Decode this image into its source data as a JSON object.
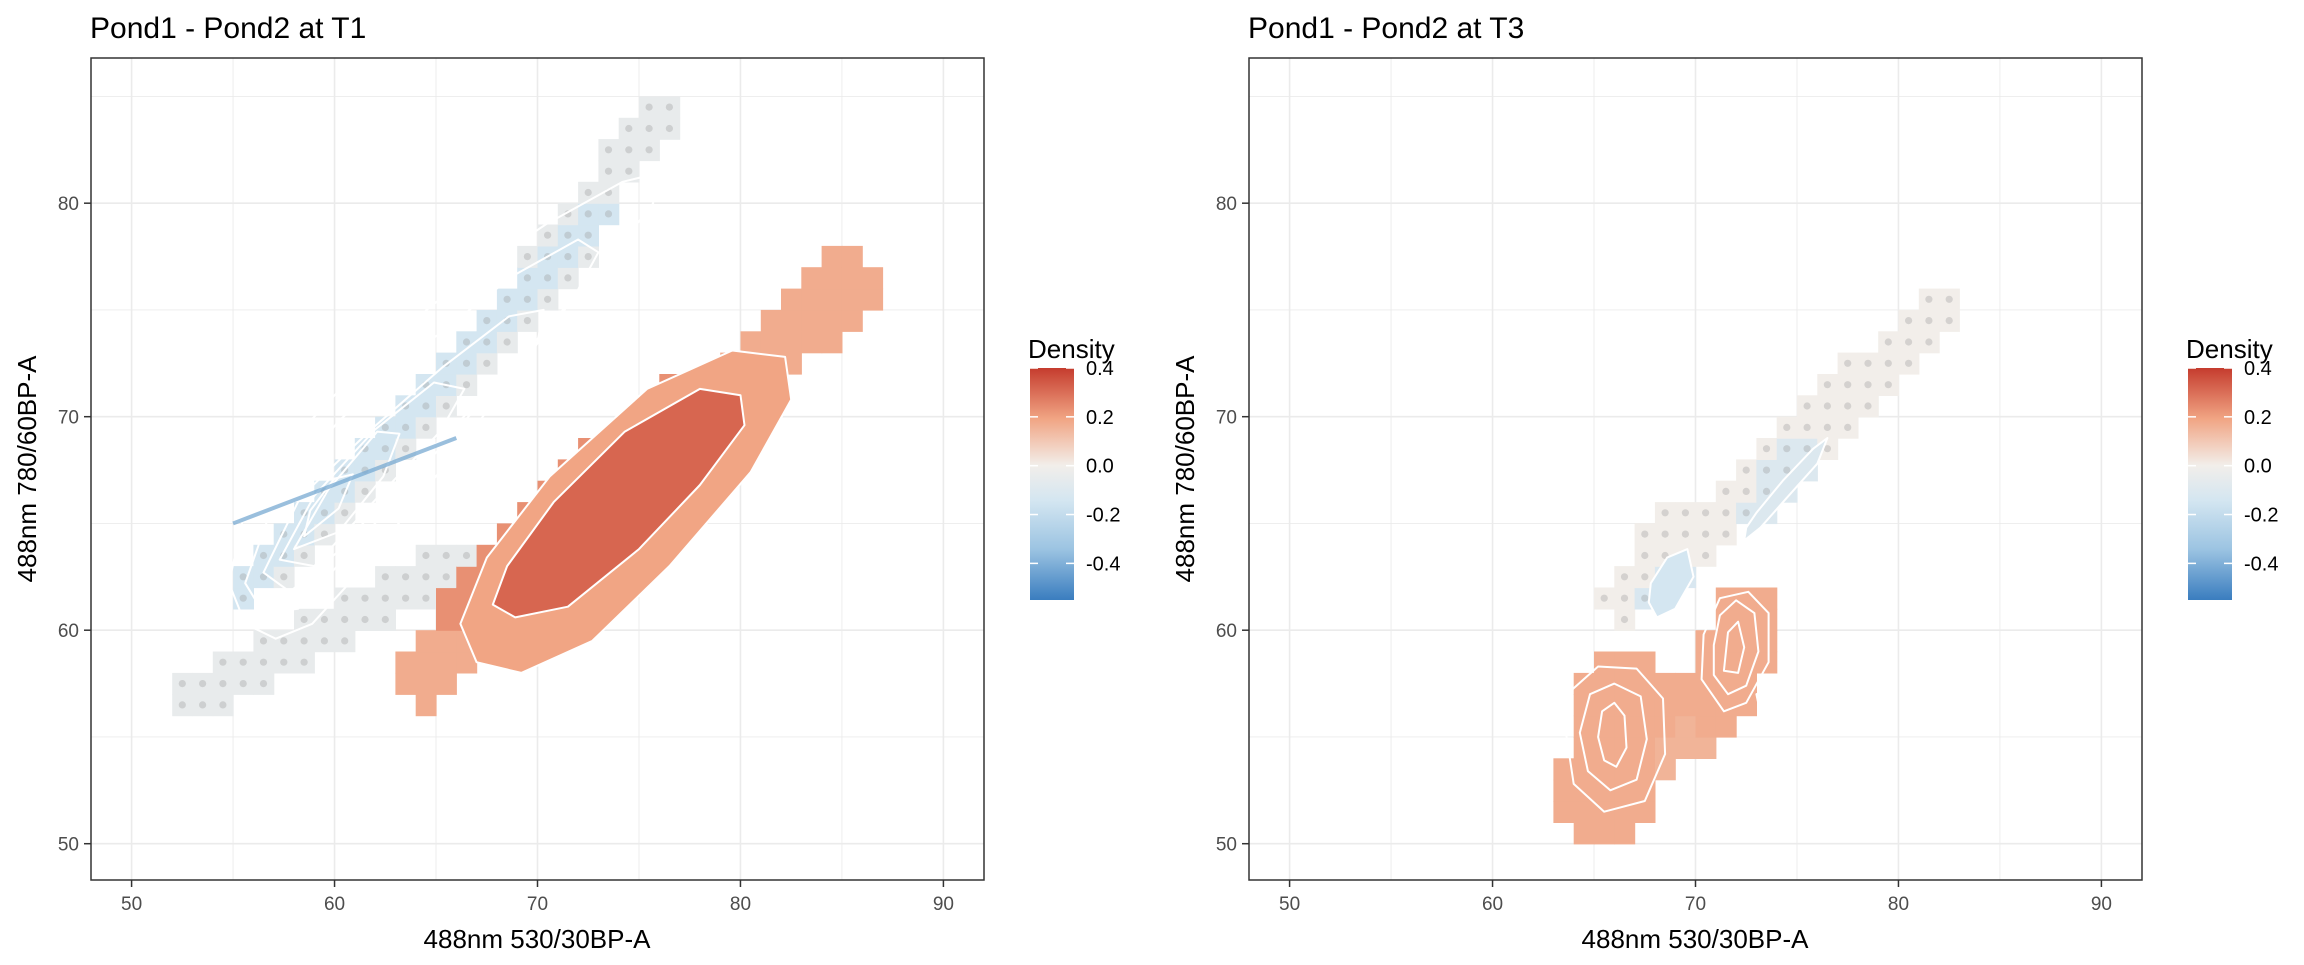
{
  "colors": {
    "low": "#3a7dbf",
    "mid": "#f2eeea",
    "high": "#c53c2e",
    "grid": "#ebebeb",
    "contour": "#ffffff"
  },
  "chart_data": [
    {
      "type": "heatmap",
      "title": "Pond1 - Pond2 at T1",
      "xlabel": "488nm 530/30BP-A",
      "ylabel": "488nm 780/60BP-A",
      "xlim": [
        48,
        92
      ],
      "ylim": [
        48.3,
        86.8
      ],
      "xticks": [
        50,
        60,
        70,
        80,
        90
      ],
      "yticks": [
        50,
        60,
        70,
        80
      ],
      "grid": true,
      "legend": {
        "title": "Density",
        "ticks": [
          0.4,
          0.2,
          0.0,
          -0.2,
          -0.4
        ],
        "range": [
          -0.55,
          0.4
        ],
        "placement": "right"
      },
      "cell_size": 1,
      "regions": [
        {
          "lo": [
            53.5,
            57
          ],
          "hi": [
            65.5,
            63
          ],
          "w": 1.3,
          "v": -0.04
        },
        {
          "lo": [
            57,
            63
          ],
          "hi": [
            72,
            78
          ],
          "w": 1.4,
          "v": -0.04
        },
        {
          "lo": [
            70,
            77
          ],
          "hi": [
            76,
            84
          ],
          "w": 1.0,
          "v": -0.04
        },
        {
          "lo": [
            55,
            61
          ],
          "hi": [
            73,
            79.5
          ],
          "w": 0.7,
          "v": -0.12
        },
        {
          "lo": [
            64.5,
            58
          ],
          "hi": [
            85,
            76
          ],
          "w": 1.6,
          "v": 0.18
        },
        {
          "lo": [
            66,
            61
          ],
          "hi": [
            77,
            71
          ],
          "w": 1.2,
          "v": 0.24
        },
        {
          "lo": [
            68,
            62
          ],
          "hi": [
            76,
            70.5
          ],
          "w": 0.7,
          "v": 0.3
        }
      ],
      "contours": [
        [
          [
            54.8,
            62.2
          ],
          [
            55.6,
            60.3
          ],
          [
            57.1,
            59.6
          ],
          [
            58.9,
            60.3
          ],
          [
            61.2,
            62.7
          ],
          [
            64.0,
            66.0
          ],
          [
            67.3,
            70.0
          ],
          [
            70.6,
            74.2
          ],
          [
            73.8,
            77.7
          ],
          [
            75.7,
            80.0
          ],
          [
            75.5,
            81.3
          ],
          [
            74.2,
            81.0
          ],
          [
            70.4,
            79.0
          ],
          [
            66.2,
            76.3
          ],
          [
            62.0,
            73.0
          ],
          [
            58.0,
            69.0
          ],
          [
            55.6,
            65.7
          ]
        ],
        [
          [
            55.6,
            62.2
          ],
          [
            56.5,
            60.8
          ],
          [
            58.2,
            61.0
          ],
          [
            61.0,
            63.9
          ],
          [
            64.6,
            67.9
          ],
          [
            68.4,
            71.9
          ],
          [
            71.8,
            75.6
          ],
          [
            73.0,
            77.7
          ],
          [
            72.0,
            78.3
          ],
          [
            68.8,
            76.6
          ],
          [
            64.5,
            73.4
          ],
          [
            60.2,
            69.8
          ],
          [
            57.0,
            66.0
          ]
        ],
        [
          [
            56.5,
            62.7
          ],
          [
            57.8,
            61.8
          ],
          [
            60.2,
            63.7
          ],
          [
            63.6,
            67.4
          ],
          [
            67.0,
            70.6
          ],
          [
            70.0,
            73.5
          ],
          [
            70.3,
            75.0
          ],
          [
            68.6,
            74.7
          ],
          [
            65.3,
            72.3
          ],
          [
            61.8,
            69.4
          ],
          [
            58.3,
            66.2
          ]
        ],
        [
          [
            57.3,
            63.3
          ],
          [
            59.0,
            63.0
          ],
          [
            62.1,
            66.2
          ],
          [
            65.2,
            69.3
          ],
          [
            66.4,
            71.3
          ],
          [
            64.9,
            71.6
          ],
          [
            62.0,
            69.4
          ],
          [
            59.0,
            66.3
          ]
        ],
        [
          [
            58.0,
            63.8
          ],
          [
            60.2,
            64.6
          ],
          [
            62.4,
            67.2
          ],
          [
            63.2,
            69.2
          ],
          [
            62.1,
            69.3
          ],
          [
            59.7,
            66.6
          ]
        ],
        [
          [
            58.5,
            64.4
          ],
          [
            60.2,
            65.7
          ],
          [
            60.9,
            67.3
          ],
          [
            60.0,
            67.1
          ],
          [
            58.8,
            65.6
          ]
        ],
        [
          [
            66.2,
            60.3
          ],
          [
            67.0,
            58.5
          ],
          [
            69.2,
            58.0
          ],
          [
            72.7,
            59.5
          ],
          [
            76.5,
            63.0
          ],
          [
            80.5,
            67.4
          ],
          [
            82.5,
            70.8
          ],
          [
            82.2,
            72.8
          ],
          [
            79.6,
            73.1
          ],
          [
            75.4,
            71.3
          ],
          [
            70.6,
            67.2
          ],
          [
            67.5,
            63.4
          ]
        ],
        [
          [
            67.8,
            61.2
          ],
          [
            68.9,
            60.6
          ],
          [
            71.5,
            61.1
          ],
          [
            75.0,
            63.8
          ],
          [
            78.0,
            66.8
          ],
          [
            80.2,
            69.6
          ],
          [
            80.0,
            71.0
          ],
          [
            78.0,
            71.3
          ],
          [
            74.3,
            69.3
          ],
          [
            70.8,
            66.0
          ],
          [
            68.5,
            63.0
          ]
        ]
      ],
      "fills": [
        {
          "index": 6,
          "v": 0.2
        },
        {
          "index": 7,
          "v": 0.32
        }
      ],
      "streak": [
        [
          55.0,
          65.0
        ],
        [
          66.0,
          69.0
        ]
      ]
    },
    {
      "type": "heatmap",
      "title": "Pond1 - Pond2 at T3",
      "xlabel": "488nm 530/30BP-A",
      "ylabel": "488nm 780/60BP-A",
      "xlim": [
        48,
        92
      ],
      "ylim": [
        48.3,
        86.8
      ],
      "xticks": [
        50,
        60,
        70,
        80,
        90
      ],
      "yticks": [
        50,
        60,
        70,
        80
      ],
      "grid": true,
      "legend": {
        "title": "Density",
        "ticks": [
          0.4,
          0.2,
          0.0,
          -0.2,
          -0.4
        ],
        "range": [
          -0.55,
          0.4
        ],
        "placement": "right"
      },
      "cell_size": 1,
      "regions": [
        {
          "lo": [
            66.5,
            61.5
          ],
          "hi": [
            69.5,
            65
          ],
          "w": 1.3,
          "v": 0.0
        },
        {
          "lo": [
            70,
            64
          ],
          "hi": [
            82,
            75
          ],
          "w": 1.2,
          "v": 0.0
        },
        {
          "lo": [
            68,
            61.5
          ],
          "hi": [
            69,
            62.5
          ],
          "w": 0.9,
          "v": -0.1
        },
        {
          "lo": [
            73,
            65.5
          ],
          "hi": [
            75,
            68
          ],
          "w": 1.0,
          "v": -0.09
        },
        {
          "lo": [
            65.5,
            52.5
          ],
          "hi": [
            66.5,
            56.5
          ],
          "w": 2.3,
          "v": 0.18
        },
        {
          "lo": [
            71,
            56.5
          ],
          "hi": [
            72.5,
            60.5
          ],
          "w": 1.8,
          "v": 0.18
        },
        {
          "lo": [
            68,
            54.5
          ],
          "hi": [
            71,
            56
          ],
          "w": 1.3,
          "v": 0.16
        },
        {
          "lo": [
            72,
            59
          ],
          "hi": [
            72,
            59
          ],
          "w": 0.6,
          "v": 0.32
        }
      ],
      "contours": [
        [
          [
            73.0,
            65.5
          ],
          [
            74.3,
            67.0
          ],
          [
            75.8,
            68.5
          ],
          [
            76.5,
            69.0
          ],
          [
            76.0,
            67.8
          ],
          [
            74.5,
            66.2
          ],
          [
            73.2,
            64.8
          ],
          [
            72.4,
            64.2
          ],
          [
            72.5,
            64.8
          ]
        ],
        [
          [
            67.8,
            62.2
          ],
          [
            68.6,
            63.4
          ],
          [
            69.6,
            63.8
          ],
          [
            69.9,
            62.5
          ],
          [
            69.0,
            61.0
          ],
          [
            68.1,
            60.6
          ],
          [
            67.7,
            61.3
          ]
        ],
        [
          [
            63.6,
            55.3
          ],
          [
            64.0,
            52.8
          ],
          [
            65.5,
            51.5
          ],
          [
            67.5,
            52.0
          ],
          [
            68.5,
            54.2
          ],
          [
            68.4,
            56.8
          ],
          [
            67.1,
            58.2
          ],
          [
            65.2,
            58.3
          ],
          [
            63.9,
            57.2
          ]
        ],
        [
          [
            64.3,
            55.2
          ],
          [
            64.7,
            53.4
          ],
          [
            65.8,
            52.5
          ],
          [
            67.1,
            53.0
          ],
          [
            67.6,
            54.9
          ],
          [
            67.3,
            56.9
          ],
          [
            66.0,
            57.5
          ],
          [
            64.8,
            57.0
          ]
        ],
        [
          [
            65.2,
            55.0
          ],
          [
            65.5,
            53.9
          ],
          [
            66.1,
            53.6
          ],
          [
            66.6,
            54.5
          ],
          [
            66.5,
            56.0
          ],
          [
            66.0,
            56.6
          ],
          [
            65.4,
            56.2
          ]
        ],
        [
          [
            70.3,
            57.7
          ],
          [
            71.4,
            56.2
          ],
          [
            72.5,
            56.6
          ],
          [
            73.6,
            58.5
          ],
          [
            73.6,
            60.8
          ],
          [
            72.6,
            61.8
          ],
          [
            71.2,
            61.5
          ],
          [
            70.4,
            59.8
          ]
        ],
        [
          [
            70.9,
            57.9
          ],
          [
            71.6,
            57.0
          ],
          [
            72.5,
            57.4
          ],
          [
            73.1,
            59.0
          ],
          [
            72.9,
            60.8
          ],
          [
            72.0,
            61.4
          ],
          [
            71.2,
            60.7
          ],
          [
            70.9,
            59.3
          ]
        ],
        [
          [
            71.4,
            58.1
          ],
          [
            72.1,
            58.0
          ],
          [
            72.4,
            59.2
          ],
          [
            72.1,
            60.4
          ],
          [
            71.6,
            59.9
          ]
        ],
        [
          [
            73.0,
            57.0
          ],
          [
            74.3,
            57.5
          ],
          [
            74.7,
            56.2
          ],
          [
            73.9,
            55.8
          ],
          [
            73.2,
            56.1
          ]
        ]
      ],
      "fills": [
        {
          "index": 0,
          "v": -0.09
        },
        {
          "index": 1,
          "v": -0.12
        }
      ],
      "streak": null
    }
  ]
}
